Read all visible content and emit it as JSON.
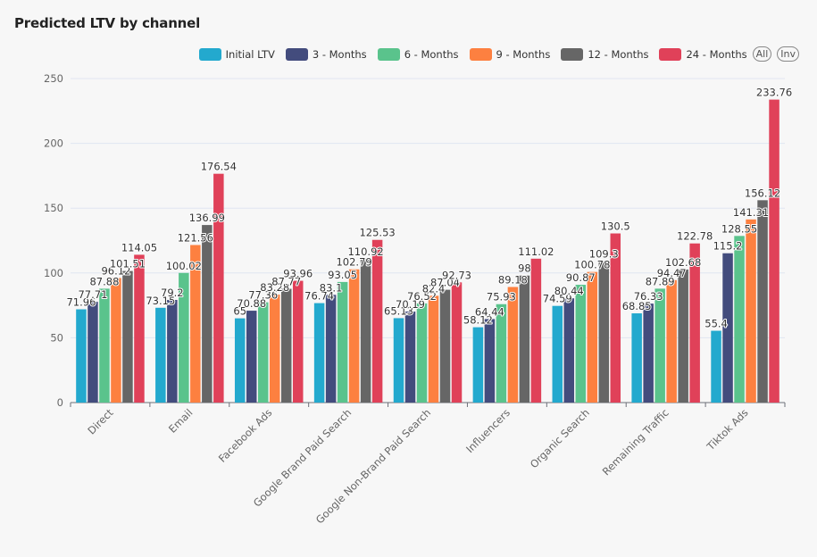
{
  "chart_data": {
    "type": "bar",
    "title": "Predicted LTV by channel",
    "xlabel": "",
    "ylabel": "",
    "ylim": [
      0,
      250
    ],
    "yticks": [
      0,
      50,
      100,
      150,
      200,
      250
    ],
    "grid": true,
    "legend_position": "top-right",
    "categories": [
      "Direct",
      "Email",
      "Facebook Ads",
      "Google Brand Paid Search",
      "Google Non-Brand Paid Search",
      "Influencers",
      "Organic Search",
      "Remaining Traffic",
      "Tiktok Ads"
    ],
    "series": [
      {
        "name": "Initial LTV",
        "color": "#23a9ce",
        "values": [
          71.96,
          73.15,
          65,
          76.74,
          65.13,
          58.12,
          74.59,
          68.85,
          55.4
        ]
      },
      {
        "name": "3 - Months",
        "color": "#434c7d",
        "values": [
          77.71,
          79.2,
          70.88,
          83.1,
          70.19,
          64.44,
          80.44,
          76.33,
          115.2
        ]
      },
      {
        "name": "6 - Months",
        "color": "#5ac38c",
        "values": [
          87.88,
          100.02,
          77.36,
          93.05,
          76.52,
          75.93,
          90.87,
          87.89,
          128.55
        ]
      },
      {
        "name": "9 - Months",
        "color": "#fd8040",
        "values": [
          96.12,
          121.56,
          83.28,
          102.79,
          82.4,
          89.18,
          100.78,
          94.47,
          141.31
        ]
      },
      {
        "name": "12 - Months",
        "color": "#666666",
        "values": [
          101.51,
          136.99,
          87.77,
          110.92,
          87.04,
          98,
          109.3,
          102.68,
          156.12
        ]
      },
      {
        "name": "24 - Months",
        "color": "#e04159",
        "values": [
          114.05,
          176.54,
          93.96,
          125.53,
          92.73,
          111.02,
          130.5,
          122.78,
          233.76
        ]
      }
    ]
  },
  "legend_buttons": {
    "all": "All",
    "inv": "Inv"
  }
}
